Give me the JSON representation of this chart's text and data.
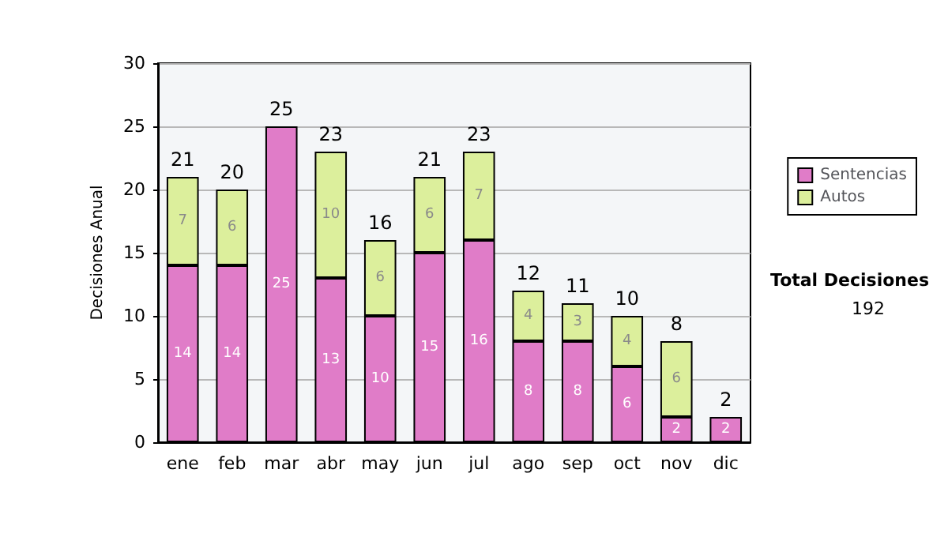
{
  "chart_data": {
    "type": "bar",
    "stacked": true,
    "ylabel": "Decisiones Anual",
    "categories": [
      "ene",
      "feb",
      "mar",
      "abr",
      "may",
      "jun",
      "jul",
      "ago",
      "sep",
      "oct",
      "nov",
      "dic"
    ],
    "series": [
      {
        "name": "Sentencias",
        "color": "#e07cc8",
        "values": [
          14,
          14,
          25,
          13,
          10,
          15,
          16,
          8,
          8,
          6,
          2,
          2
        ],
        "value_labels": [
          "14",
          "14",
          "25",
          "13",
          "10",
          "15",
          "16",
          "8",
          "8",
          "6",
          "2",
          "2"
        ]
      },
      {
        "name": "Autos",
        "color": "#dcef9c",
        "values": [
          7,
          6,
          0,
          10,
          6,
          6,
          7,
          4,
          3,
          4,
          6,
          0
        ],
        "value_labels": [
          "7",
          "6",
          null,
          "10",
          "6",
          "6",
          "7",
          "4",
          "3",
          "4",
          "6",
          null
        ]
      }
    ],
    "totals": [
      "21",
      "20",
      "25",
      "23",
      "16",
      "21",
      "23",
      "12",
      "11",
      "10",
      "8",
      "2"
    ],
    "ylim": [
      0,
      30
    ],
    "yticks": [
      0,
      5,
      10,
      15,
      20,
      25,
      30
    ],
    "grid": "y",
    "legend": "right",
    "annotations": [
      "Total Decisiones",
      "192"
    ]
  }
}
